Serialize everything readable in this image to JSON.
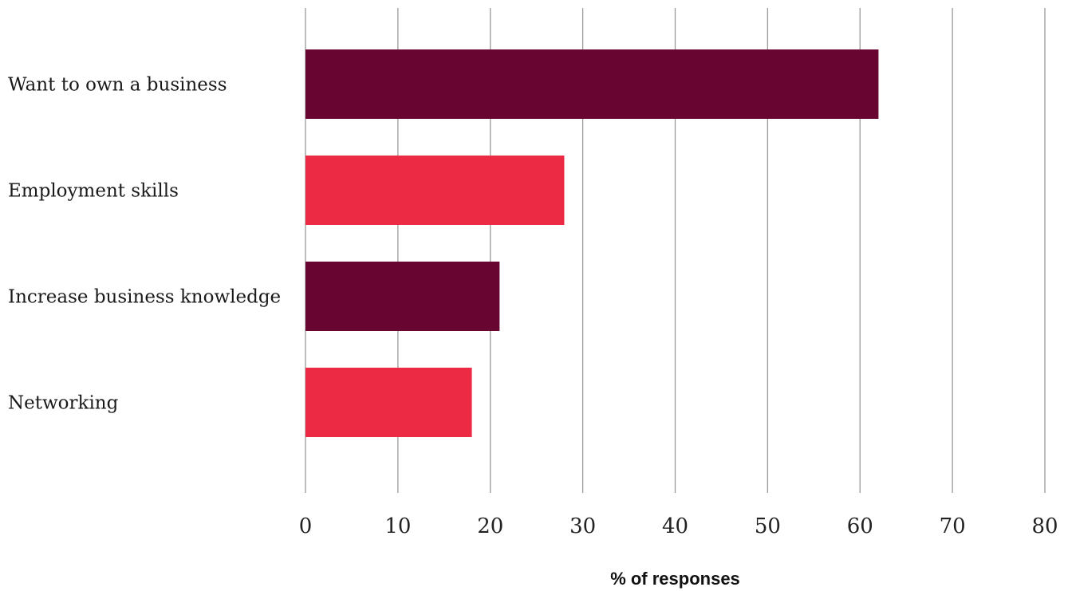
{
  "chart_data": {
    "type": "bar",
    "orientation": "horizontal",
    "categories": [
      "Want to own a business",
      "Employment skills",
      "Increase business knowledge",
      "Networking"
    ],
    "values": [
      62,
      28,
      21,
      18
    ],
    "bar_colors": [
      "#690531",
      "#ec2a43",
      "#690531",
      "#ec2a43"
    ],
    "xlabel": "% of responses",
    "ylabel": "",
    "xlim": [
      0,
      80
    ],
    "xticks": [
      0,
      10,
      20,
      30,
      40,
      50,
      60,
      70,
      80
    ],
    "grid": "vertical",
    "grid_color": "#9a9a9a",
    "legend": "none"
  }
}
